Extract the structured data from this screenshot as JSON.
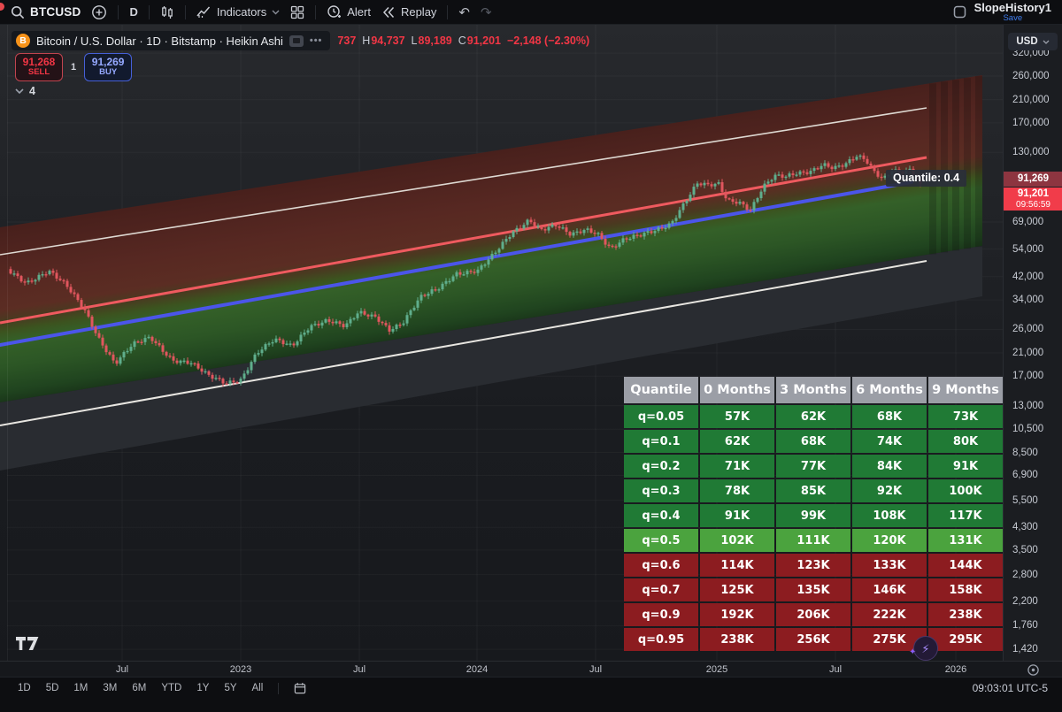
{
  "topbar": {
    "symbol": "BTCUSD",
    "interval": "D",
    "indicators": "Indicators",
    "alert": "Alert",
    "replay": "Replay",
    "account": "SlopeHistory1",
    "save": "Save"
  },
  "legend": {
    "title": "Bitcoin / U.S. Dollar · 1D · Bitstamp · Heikin Ashi",
    "more": "•••",
    "ohlc": [
      {
        "k": "",
        "v": "737"
      },
      {
        "k": "H",
        "v": "94,737"
      },
      {
        "k": "L",
        "v": "89,189"
      },
      {
        "k": "C",
        "v": "91,201"
      },
      {
        "k": "",
        "v": "−2,148 (−2.30%)"
      }
    ]
  },
  "trade": {
    "sell_price": "91,268",
    "sell_label": "SELL",
    "spread": "1",
    "buy_price": "91,269",
    "buy_label": "BUY",
    "objects_count": "4"
  },
  "tooltip": "Quantile: 0.4",
  "price_axis": {
    "currency": "USD",
    "labels": [
      "320,000",
      "260,000",
      "210,000",
      "170,000",
      "130,000",
      "69,000",
      "54,000",
      "42,000",
      "34,000",
      "26,000",
      "21,000",
      "17,000",
      "13,000",
      "10,500",
      "8,500",
      "6,900",
      "5,500",
      "4,300",
      "3,500",
      "2,800",
      "2,200",
      "1,760",
      "1,420"
    ],
    "ask_tag": "91,269",
    "last_tag": "91,201",
    "countdown": "09:56:59"
  },
  "time_axis": [
    {
      "label": "Jul",
      "x": 138
    },
    {
      "label": "2023",
      "x": 272
    },
    {
      "label": "Jul",
      "x": 406
    },
    {
      "label": "2024",
      "x": 539
    },
    {
      "label": "Jul",
      "x": 673
    },
    {
      "label": "2025",
      "x": 810
    },
    {
      "label": "Jul",
      "x": 944
    },
    {
      "label": "2026",
      "x": 1080
    }
  ],
  "table": {
    "headers": [
      "Quantile",
      "0 Months",
      "3 Months",
      "6 Months",
      "9 Months"
    ],
    "rows": [
      {
        "q": "q=0.05",
        "values": [
          "57K",
          "62K",
          "68K",
          "73K"
        ],
        "tone": "green"
      },
      {
        "q": "q=0.1",
        "values": [
          "62K",
          "68K",
          "74K",
          "80K"
        ],
        "tone": "green"
      },
      {
        "q": "q=0.2",
        "values": [
          "71K",
          "77K",
          "84K",
          "91K"
        ],
        "tone": "green"
      },
      {
        "q": "q=0.3",
        "values": [
          "78K",
          "85K",
          "92K",
          "100K"
        ],
        "tone": "green"
      },
      {
        "q": "q=0.4",
        "values": [
          "91K",
          "99K",
          "108K",
          "117K"
        ],
        "tone": "green"
      },
      {
        "q": "q=0.5",
        "values": [
          "102K",
          "111K",
          "120K",
          "131K"
        ],
        "tone": "bright"
      },
      {
        "q": "q=0.6",
        "values": [
          "114K",
          "123K",
          "133K",
          "144K"
        ],
        "tone": "red"
      },
      {
        "q": "q=0.7",
        "values": [
          "125K",
          "135K",
          "146K",
          "158K"
        ],
        "tone": "red"
      },
      {
        "q": "q=0.9",
        "values": [
          "192K",
          "206K",
          "222K",
          "238K"
        ],
        "tone": "red"
      },
      {
        "q": "q=0.95",
        "values": [
          "238K",
          "256K",
          "275K",
          "295K"
        ],
        "tone": "red"
      }
    ]
  },
  "footer": {
    "ranges": [
      "1D",
      "5D",
      "1M",
      "3M",
      "6M",
      "YTD",
      "1Y",
      "5Y",
      "All"
    ],
    "clock": "09:03:01 UTC-5"
  },
  "colors": {
    "sell_red": "#f23645",
    "buy_blue": "#4660d8",
    "candle_up": "#5fae8c",
    "candle_down": "#e1565e",
    "channel_red_line": "#ef5a5f",
    "channel_blue_line": "#4b55ea",
    "channel_bound_white": "#e8e6e1",
    "table_green": "#207a35",
    "table_bright_green": "#4ba33e",
    "table_red": "#8c1c20",
    "last_price_tag": "#f13c4a"
  },
  "chart_data": {
    "type": "candlestick",
    "style": "Heikin Ashi",
    "symbol": "BTCUSD",
    "exchange": "Bitstamp",
    "interval": "1D",
    "scale": "log",
    "ylim": [
      1420,
      320000
    ],
    "last_quote": {
      "high": 94737,
      "low": 89189,
      "close": 91201,
      "change": -2148,
      "change_pct": -2.3
    },
    "overlay": "quantile regression channel: white outer bounds, red upper quantile line, blue median line labeled Quantile: 0.4, with forward quantile forecast table",
    "price_anchors": [
      [
        8,
        45000
      ],
      [
        30,
        40000
      ],
      [
        55,
        44000
      ],
      [
        75,
        38500
      ],
      [
        95,
        31500
      ],
      [
        112,
        24000
      ],
      [
        130,
        19000
      ],
      [
        150,
        22500
      ],
      [
        170,
        24200
      ],
      [
        195,
        19800
      ],
      [
        215,
        19200
      ],
      [
        235,
        17000
      ],
      [
        255,
        16000
      ],
      [
        272,
        16600
      ],
      [
        290,
        21000
      ],
      [
        310,
        23500
      ],
      [
        330,
        22300
      ],
      [
        350,
        27000
      ],
      [
        370,
        28300
      ],
      [
        390,
        26500
      ],
      [
        405,
        30200
      ],
      [
        425,
        29300
      ],
      [
        440,
        26100
      ],
      [
        455,
        27500
      ],
      [
        475,
        34500
      ],
      [
        495,
        37800
      ],
      [
        515,
        43500
      ],
      [
        540,
        44200
      ],
      [
        558,
        51000
      ],
      [
        578,
        62500
      ],
      [
        598,
        71000
      ],
      [
        612,
        64500
      ],
      [
        628,
        66500
      ],
      [
        645,
        61000
      ],
      [
        662,
        64800
      ],
      [
        675,
        62800
      ],
      [
        690,
        54500
      ],
      [
        705,
        58500
      ],
      [
        722,
        60500
      ],
      [
        740,
        64000
      ],
      [
        758,
        68500
      ],
      [
        772,
        81000
      ],
      [
        788,
        97500
      ],
      [
        800,
        95500
      ],
      [
        812,
        97000
      ],
      [
        822,
        84000
      ],
      [
        835,
        83500
      ],
      [
        848,
        77500
      ],
      [
        862,
        94500
      ],
      [
        875,
        104000
      ],
      [
        888,
        103500
      ],
      [
        900,
        107500
      ],
      [
        915,
        110000
      ],
      [
        930,
        117500
      ],
      [
        942,
        112500
      ],
      [
        955,
        115500
      ],
      [
        968,
        124500
      ],
      [
        978,
        121500
      ],
      [
        988,
        109500
      ],
      [
        998,
        103000
      ],
      [
        1008,
        111500
      ],
      [
        1020,
        108500
      ],
      [
        1030,
        110500
      ],
      [
        1038,
        97500
      ],
      [
        1043,
        91200
      ]
    ]
  }
}
